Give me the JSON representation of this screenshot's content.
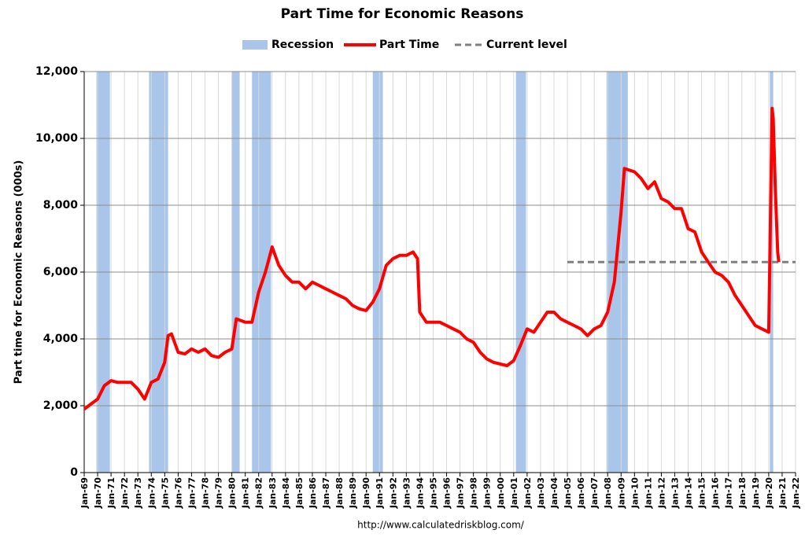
{
  "chart_data": {
    "type": "line",
    "title": "Part Time for Economic Reasons",
    "y_label": "Part time for Economic Reasons (000s)",
    "source": "http://www.calculatedriskblog.com/",
    "x": [
      "Jan-69",
      "Jul-69",
      "Jan-70",
      "Jul-70",
      "Jan-71",
      "Jul-71",
      "Jan-72",
      "Jul-72",
      "Jan-73",
      "Jul-73",
      "Jan-74",
      "Jul-74",
      "Jan-75",
      "Apr-75",
      "Jul-75",
      "Jan-76",
      "Jul-76",
      "Jan-77",
      "Jul-77",
      "Jan-78",
      "Jul-78",
      "Jan-79",
      "Jul-79",
      "Jan-80",
      "May-80",
      "Jan-81",
      "Jul-81",
      "Jan-82",
      "Jul-82",
      "Jan-83",
      "Jul-83",
      "Jan-84",
      "Jul-84",
      "Jan-85",
      "Jul-85",
      "Jan-86",
      "Jul-86",
      "Jan-87",
      "Jul-87",
      "Jan-88",
      "Jul-88",
      "Jan-89",
      "Jul-89",
      "Jan-90",
      "Jul-90",
      "Jan-91",
      "Jul-91",
      "Jan-92",
      "Jul-92",
      "Jan-93",
      "Jul-93",
      "Nov-93",
      "Jan-94",
      "Jul-94",
      "Jan-95",
      "Jul-95",
      "Jan-96",
      "Jul-96",
      "Jan-97",
      "Jul-97",
      "Jan-98",
      "Jul-98",
      "Jan-99",
      "Jul-99",
      "Jan-00",
      "Jul-00",
      "Jan-01",
      "Jul-01",
      "Jan-02",
      "Jul-02",
      "Jan-03",
      "Jul-03",
      "Jan-04",
      "Jul-04",
      "Jan-05",
      "Jul-05",
      "Jan-06",
      "Jul-06",
      "Jan-07",
      "Jul-07",
      "Jan-08",
      "Jul-08",
      "Jan-09",
      "Apr-09",
      "Jan-10",
      "Jul-10",
      "Jan-11",
      "Jul-11",
      "Jan-12",
      "Jul-12",
      "Jan-13",
      "Jul-13",
      "Jan-14",
      "Jul-14",
      "Jan-15",
      "Jul-15",
      "Jan-16",
      "Jul-16",
      "Jan-17",
      "Jul-17",
      "Jan-18",
      "Jul-18",
      "Jan-19",
      "Jul-19",
      "Jan-20",
      "Apr-20",
      "May-20",
      "Jul-20",
      "Sep-20",
      "Oct-20"
    ],
    "series": [
      {
        "name": "Part Time",
        "color": "#ff0000",
        "values": [
          1900,
          2050,
          2200,
          2600,
          2750,
          2700,
          2700,
          2700,
          2500,
          2200,
          2700,
          2800,
          3300,
          4100,
          4150,
          3600,
          3550,
          3700,
          3600,
          3700,
          3500,
          3450,
          3600,
          3700,
          4600,
          4500,
          4500,
          5400,
          6000,
          6750,
          6200,
          5900,
          5700,
          5700,
          5500,
          5700,
          5600,
          5500,
          5400,
          5300,
          5200,
          5000,
          4900,
          4850,
          5100,
          5500,
          6200,
          6400,
          6500,
          6500,
          6600,
          6400,
          4800,
          4500,
          4500,
          4500,
          4400,
          4300,
          4200,
          4000,
          3900,
          3600,
          3400,
          3300,
          3250,
          3200,
          3350,
          3800,
          4300,
          4200,
          4500,
          4800,
          4800,
          4600,
          4500,
          4400,
          4300,
          4100,
          4300,
          4400,
          4800,
          5700,
          7800,
          9100,
          9000,
          8800,
          8500,
          8700,
          8200,
          8100,
          7900,
          7900,
          7300,
          7200,
          6600,
          6300,
          6000,
          5900,
          5700,
          5300,
          5000,
          4700,
          4400,
          4300,
          4200,
          10900,
          10600,
          8400,
          6600,
          6300
        ]
      }
    ],
    "recessions": {
      "name": "Recession",
      "color": "#a9c6ea",
      "periods": [
        [
          "Dec-69",
          "Nov-70"
        ],
        [
          "Nov-73",
          "Mar-75"
        ],
        [
          "Jan-80",
          "Jul-80"
        ],
        [
          "Jul-81",
          "Nov-82"
        ],
        [
          "Jul-90",
          "Mar-91"
        ],
        [
          "Mar-01",
          "Nov-01"
        ],
        [
          "Dec-07",
          "Jun-09"
        ],
        [
          "Feb-20",
          "Apr-20"
        ]
      ]
    },
    "current_level": {
      "name": "Current level",
      "value": 6300,
      "color": "#7f7f7f",
      "x": [
        "Jan-05",
        "Jan-22"
      ]
    },
    "xticks": [
      "Jan-69",
      "Jan-70",
      "Jan-71",
      "Jan-72",
      "Jan-73",
      "Jan-74",
      "Jan-75",
      "Jan-76",
      "Jan-77",
      "Jan-78",
      "Jan-79",
      "Jan-80",
      "Jan-81",
      "Jan-82",
      "Jan-83",
      "Jan-84",
      "Jan-85",
      "Jan-86",
      "Jan-87",
      "Jan-88",
      "Jan-89",
      "Jan-90",
      "Jan-91",
      "Jan-92",
      "Jan-93",
      "Jan-94",
      "Jan-95",
      "Jan-96",
      "Jan-97",
      "Jan-98",
      "Jan-99",
      "Jan-00",
      "Jan-01",
      "Jan-02",
      "Jan-03",
      "Jan-04",
      "Jan-05",
      "Jan-06",
      "Jan-07",
      "Jan-08",
      "Jan-09",
      "Jan-10",
      "Jan-11",
      "Jan-12",
      "Jan-13",
      "Jan-14",
      "Jan-15",
      "Jan-16",
      "Jan-17",
      "Jan-18",
      "Jan-19",
      "Jan-20",
      "Jan-21",
      "Jan-22"
    ],
    "ylim": [
      0,
      12000
    ],
    "yticks": [
      0,
      {
        "value": 2000,
        "label": "2,000"
      },
      {
        "value": 4000,
        "label": "4,000"
      },
      {
        "value": 6000,
        "label": "6,000"
      },
      {
        "value": 8000,
        "label": "8,000"
      },
      {
        "value": 10000,
        "label": "10,000"
      },
      {
        "value": 12000,
        "label": "12,000"
      }
    ],
    "grid": true
  }
}
